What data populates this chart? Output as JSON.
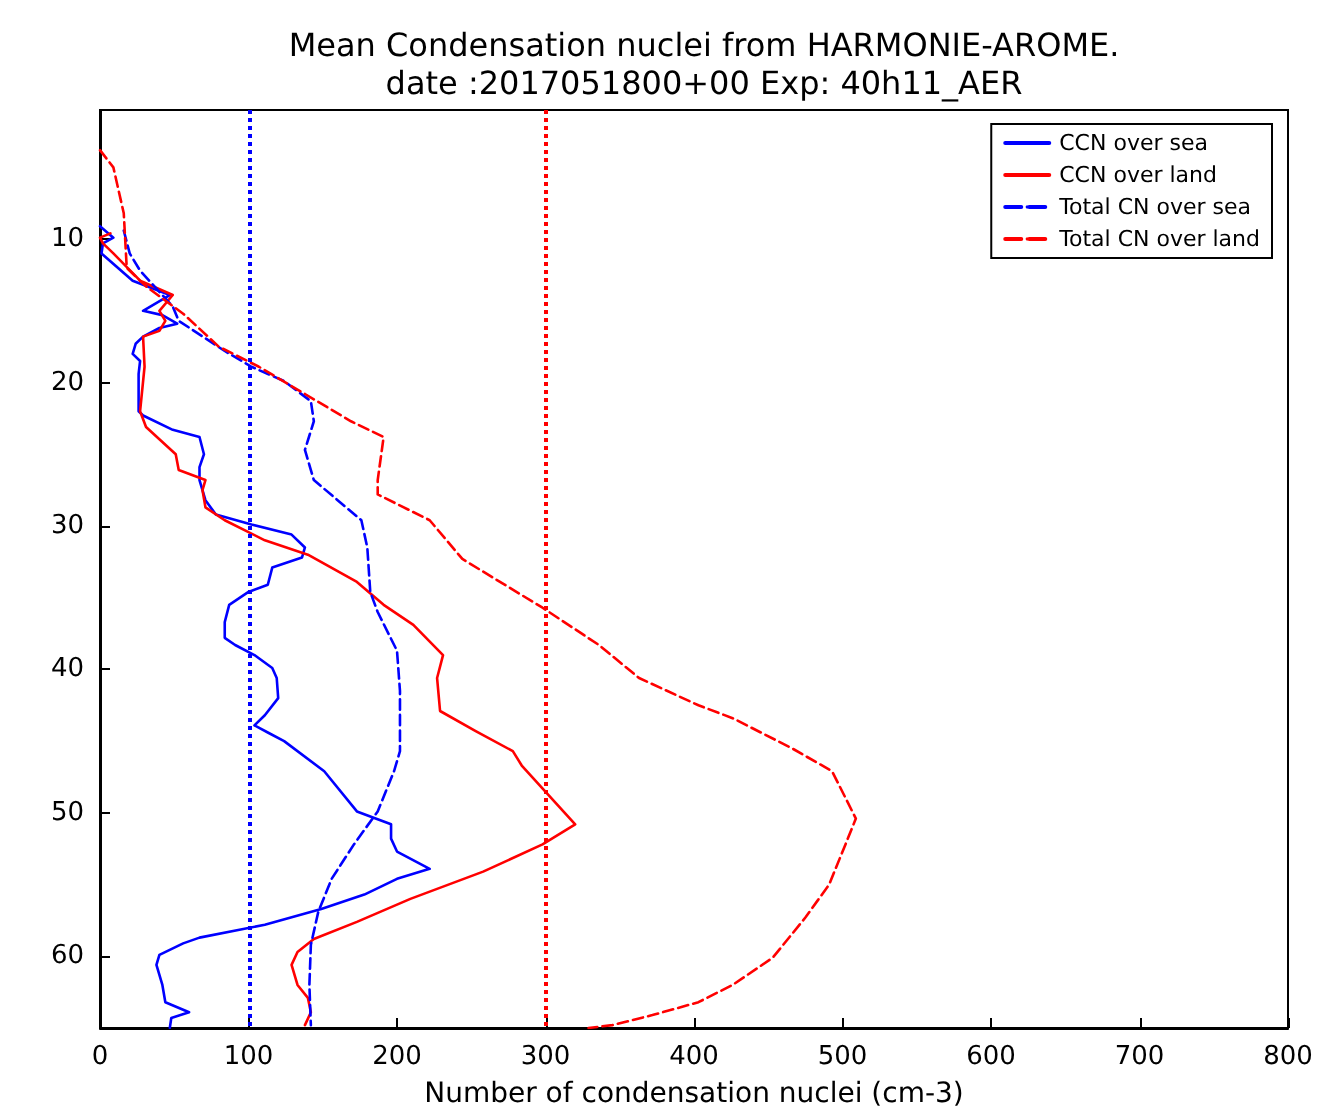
{
  "chart_data": {
    "type": "line",
    "title": "Mean Condensation nuclei from HARMONIE-AROME.\ndate :2017051800+00 Exp: 40h11_AER",
    "xlabel": "Number of condensation nuclei (cm-3)",
    "xlim": [
      0,
      800
    ],
    "xticks": [
      0,
      100,
      200,
      300,
      400,
      500,
      600,
      700,
      800
    ],
    "ylim": [
      65,
      1
    ],
    "yticks": [
      10,
      20,
      30,
      40,
      50,
      60
    ],
    "grid": false,
    "legend": "top right",
    "marker": "none",
    "series": [
      {
        "name": "CCN over sea",
        "color": "#0000ff",
        "line_style": "solid",
        "x": [
          0,
          9,
          2,
          1,
          22,
          47,
          29,
          42,
          52,
          40,
          29,
          24,
          22,
          27,
          26,
          26,
          29,
          49,
          67,
          70,
          67,
          67,
          71,
          78,
          102,
          129,
          138,
          136,
          116,
          113,
          100,
          87,
          84,
          84,
          91,
          104,
          116,
          119,
          120,
          111,
          104,
          113,
          124,
          151,
          173,
          196,
          196,
          200,
          222,
          200,
          178,
          149,
          111,
          67,
          56,
          40,
          38,
          42,
          44,
          60,
          48,
          47
        ],
        "values": [
          9.1,
          9.9,
          10.3,
          11,
          12.9,
          13.9,
          15,
          15.3,
          15.9,
          16.2,
          16.8,
          17.3,
          18,
          18.5,
          19.4,
          22,
          22.3,
          23.3,
          23.8,
          25,
          25.9,
          26.8,
          28.2,
          29.2,
          29.9,
          30.6,
          31.5,
          32.2,
          32.9,
          34.1,
          34.6,
          35.5,
          36.7,
          37.8,
          38.3,
          39,
          39.9,
          40.6,
          42,
          43.2,
          43.9,
          44.4,
          45,
          47.1,
          49.9,
          50.8,
          51.8,
          52.7,
          53.9,
          54.6,
          55.7,
          56.7,
          57.8,
          58.7,
          59.1,
          59.9,
          60.6,
          62,
          63.2,
          63.9,
          64.3,
          65
        ]
      },
      {
        "name": "CCN over land",
        "color": "#ff0000",
        "line_style": "solid",
        "x": [
          7,
          0,
          2,
          9,
          27,
          49,
          40,
          44,
          40,
          29,
          30,
          27,
          31,
          51,
          53,
          71,
          69,
          71,
          84,
          111,
          140,
          173,
          191,
          211,
          231,
          227,
          229,
          253,
          278,
          284,
          320,
          298,
          258,
          209,
          173,
          144,
          133,
          129,
          133,
          140,
          142,
          138
        ],
        "values": [
          9.6,
          9.9,
          10.3,
          11,
          12.9,
          13.9,
          15,
          15.7,
          16.4,
          16.8,
          18.9,
          22,
          23.1,
          25,
          26.1,
          26.8,
          27.5,
          28.7,
          29.6,
          31,
          32,
          33.9,
          35.5,
          36.9,
          39,
          40.6,
          42.9,
          44.3,
          45.7,
          46.7,
          50.8,
          52.2,
          54.1,
          56,
          57.6,
          58.8,
          59.7,
          60.6,
          62,
          62.9,
          63.9,
          64.8
        ]
      },
      {
        "name": "Total CN over sea",
        "color": "#0000ff",
        "line_style": "dashed",
        "x": [
          16,
          20,
          27,
          49,
          53,
          84,
          102,
          124,
          142,
          144,
          138,
          144,
          160,
          176,
          180,
          182,
          187,
          200,
          202,
          202,
          198,
          187,
          171,
          156,
          147,
          142,
          141,
          142
        ],
        "values": [
          9.4,
          11,
          12.2,
          14.7,
          15.7,
          17.8,
          18.9,
          19.9,
          21.3,
          22.7,
          24.7,
          26.8,
          28.2,
          29.6,
          31.5,
          34.6,
          36,
          38.7,
          41.5,
          45.7,
          47.1,
          49.9,
          52.2,
          54.6,
          56.9,
          59.2,
          62,
          64.8
        ]
      },
      {
        "name": "Total CN over land",
        "color": "#ff0000",
        "line_style": "dashed",
        "x": [
          0,
          9,
          16,
          18,
          31,
          56,
          80,
          107,
          138,
          169,
          191,
          187,
          187,
          222,
          244,
          298,
          336,
          363,
          403,
          426,
          466,
          493,
          509,
          502,
          491,
          475,
          453,
          426,
          403,
          372,
          345,
          329
        ],
        "values": [
          3.8,
          5,
          8.2,
          12,
          13.3,
          15.2,
          17.5,
          18.9,
          20.8,
          22.7,
          23.8,
          26.8,
          27.8,
          29.6,
          32.3,
          35.7,
          38.3,
          40.6,
          42.5,
          43.4,
          45.5,
          47.1,
          50.4,
          52.2,
          55,
          57.3,
          60.1,
          62,
          63.2,
          64.1,
          64.8,
          65
        ]
      }
    ],
    "ref_lines": [
      {
        "axis": "x",
        "value": 100,
        "color": "#0000ff",
        "line_style": "dotted"
      },
      {
        "axis": "x",
        "value": 300,
        "color": "#ff0000",
        "line_style": "dotted"
      }
    ]
  }
}
